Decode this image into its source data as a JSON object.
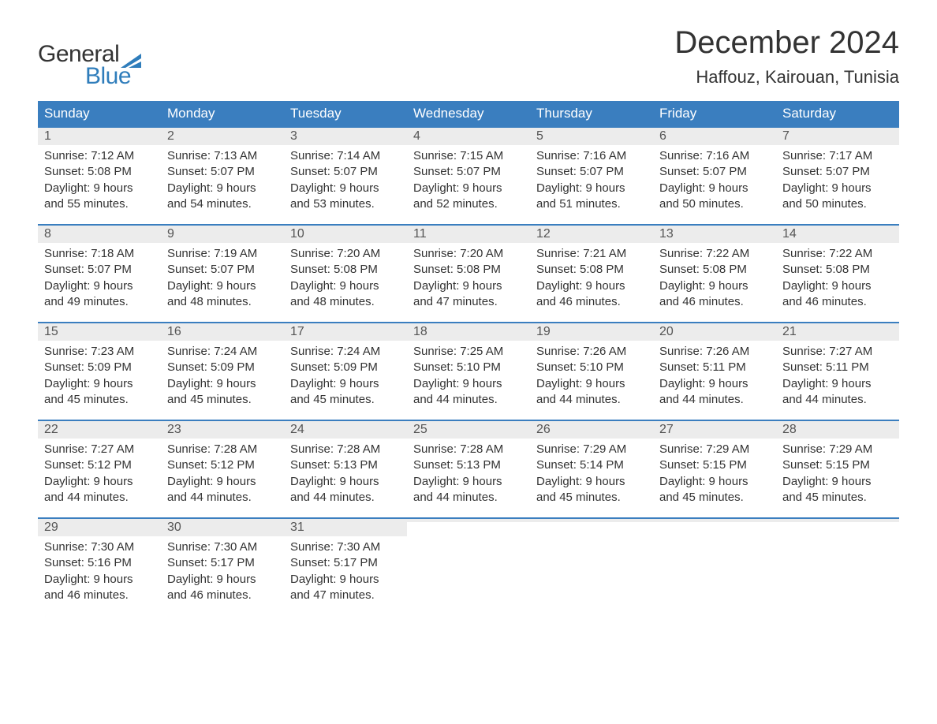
{
  "logo": {
    "text1": "General",
    "text2": "Blue",
    "flag_color": "#2f7dbb"
  },
  "title": "December 2024",
  "subtitle": "Haffouz, Kairouan, Tunisia",
  "colors": {
    "header_bg": "#3a7ebf",
    "header_text": "#ffffff",
    "daynum_bg": "#ececec",
    "border": "#3a7ebf",
    "body_text": "#333333",
    "logo_blue": "#2f7dbb"
  },
  "typography": {
    "title_fontsize": 40,
    "subtitle_fontsize": 22,
    "dow_fontsize": 17,
    "body_fontsize": 15,
    "logo_fontsize": 30
  },
  "dow": [
    "Sunday",
    "Monday",
    "Tuesday",
    "Wednesday",
    "Thursday",
    "Friday",
    "Saturday"
  ],
  "weeks": [
    [
      {
        "n": "1",
        "sunrise": "Sunrise: 7:12 AM",
        "sunset": "Sunset: 5:08 PM",
        "d1": "Daylight: 9 hours",
        "d2": "and 55 minutes."
      },
      {
        "n": "2",
        "sunrise": "Sunrise: 7:13 AM",
        "sunset": "Sunset: 5:07 PM",
        "d1": "Daylight: 9 hours",
        "d2": "and 54 minutes."
      },
      {
        "n": "3",
        "sunrise": "Sunrise: 7:14 AM",
        "sunset": "Sunset: 5:07 PM",
        "d1": "Daylight: 9 hours",
        "d2": "and 53 minutes."
      },
      {
        "n": "4",
        "sunrise": "Sunrise: 7:15 AM",
        "sunset": "Sunset: 5:07 PM",
        "d1": "Daylight: 9 hours",
        "d2": "and 52 minutes."
      },
      {
        "n": "5",
        "sunrise": "Sunrise: 7:16 AM",
        "sunset": "Sunset: 5:07 PM",
        "d1": "Daylight: 9 hours",
        "d2": "and 51 minutes."
      },
      {
        "n": "6",
        "sunrise": "Sunrise: 7:16 AM",
        "sunset": "Sunset: 5:07 PM",
        "d1": "Daylight: 9 hours",
        "d2": "and 50 minutes."
      },
      {
        "n": "7",
        "sunrise": "Sunrise: 7:17 AM",
        "sunset": "Sunset: 5:07 PM",
        "d1": "Daylight: 9 hours",
        "d2": "and 50 minutes."
      }
    ],
    [
      {
        "n": "8",
        "sunrise": "Sunrise: 7:18 AM",
        "sunset": "Sunset: 5:07 PM",
        "d1": "Daylight: 9 hours",
        "d2": "and 49 minutes."
      },
      {
        "n": "9",
        "sunrise": "Sunrise: 7:19 AM",
        "sunset": "Sunset: 5:07 PM",
        "d1": "Daylight: 9 hours",
        "d2": "and 48 minutes."
      },
      {
        "n": "10",
        "sunrise": "Sunrise: 7:20 AM",
        "sunset": "Sunset: 5:08 PM",
        "d1": "Daylight: 9 hours",
        "d2": "and 48 minutes."
      },
      {
        "n": "11",
        "sunrise": "Sunrise: 7:20 AM",
        "sunset": "Sunset: 5:08 PM",
        "d1": "Daylight: 9 hours",
        "d2": "and 47 minutes."
      },
      {
        "n": "12",
        "sunrise": "Sunrise: 7:21 AM",
        "sunset": "Sunset: 5:08 PM",
        "d1": "Daylight: 9 hours",
        "d2": "and 46 minutes."
      },
      {
        "n": "13",
        "sunrise": "Sunrise: 7:22 AM",
        "sunset": "Sunset: 5:08 PM",
        "d1": "Daylight: 9 hours",
        "d2": "and 46 minutes."
      },
      {
        "n": "14",
        "sunrise": "Sunrise: 7:22 AM",
        "sunset": "Sunset: 5:08 PM",
        "d1": "Daylight: 9 hours",
        "d2": "and 46 minutes."
      }
    ],
    [
      {
        "n": "15",
        "sunrise": "Sunrise: 7:23 AM",
        "sunset": "Sunset: 5:09 PM",
        "d1": "Daylight: 9 hours",
        "d2": "and 45 minutes."
      },
      {
        "n": "16",
        "sunrise": "Sunrise: 7:24 AM",
        "sunset": "Sunset: 5:09 PM",
        "d1": "Daylight: 9 hours",
        "d2": "and 45 minutes."
      },
      {
        "n": "17",
        "sunrise": "Sunrise: 7:24 AM",
        "sunset": "Sunset: 5:09 PM",
        "d1": "Daylight: 9 hours",
        "d2": "and 45 minutes."
      },
      {
        "n": "18",
        "sunrise": "Sunrise: 7:25 AM",
        "sunset": "Sunset: 5:10 PM",
        "d1": "Daylight: 9 hours",
        "d2": "and 44 minutes."
      },
      {
        "n": "19",
        "sunrise": "Sunrise: 7:26 AM",
        "sunset": "Sunset: 5:10 PM",
        "d1": "Daylight: 9 hours",
        "d2": "and 44 minutes."
      },
      {
        "n": "20",
        "sunrise": "Sunrise: 7:26 AM",
        "sunset": "Sunset: 5:11 PM",
        "d1": "Daylight: 9 hours",
        "d2": "and 44 minutes."
      },
      {
        "n": "21",
        "sunrise": "Sunrise: 7:27 AM",
        "sunset": "Sunset: 5:11 PM",
        "d1": "Daylight: 9 hours",
        "d2": "and 44 minutes."
      }
    ],
    [
      {
        "n": "22",
        "sunrise": "Sunrise: 7:27 AM",
        "sunset": "Sunset: 5:12 PM",
        "d1": "Daylight: 9 hours",
        "d2": "and 44 minutes."
      },
      {
        "n": "23",
        "sunrise": "Sunrise: 7:28 AM",
        "sunset": "Sunset: 5:12 PM",
        "d1": "Daylight: 9 hours",
        "d2": "and 44 minutes."
      },
      {
        "n": "24",
        "sunrise": "Sunrise: 7:28 AM",
        "sunset": "Sunset: 5:13 PM",
        "d1": "Daylight: 9 hours",
        "d2": "and 44 minutes."
      },
      {
        "n": "25",
        "sunrise": "Sunrise: 7:28 AM",
        "sunset": "Sunset: 5:13 PM",
        "d1": "Daylight: 9 hours",
        "d2": "and 44 minutes."
      },
      {
        "n": "26",
        "sunrise": "Sunrise: 7:29 AM",
        "sunset": "Sunset: 5:14 PM",
        "d1": "Daylight: 9 hours",
        "d2": "and 45 minutes."
      },
      {
        "n": "27",
        "sunrise": "Sunrise: 7:29 AM",
        "sunset": "Sunset: 5:15 PM",
        "d1": "Daylight: 9 hours",
        "d2": "and 45 minutes."
      },
      {
        "n": "28",
        "sunrise": "Sunrise: 7:29 AM",
        "sunset": "Sunset: 5:15 PM",
        "d1": "Daylight: 9 hours",
        "d2": "and 45 minutes."
      }
    ],
    [
      {
        "n": "29",
        "sunrise": "Sunrise: 7:30 AM",
        "sunset": "Sunset: 5:16 PM",
        "d1": "Daylight: 9 hours",
        "d2": "and 46 minutes."
      },
      {
        "n": "30",
        "sunrise": "Sunrise: 7:30 AM",
        "sunset": "Sunset: 5:17 PM",
        "d1": "Daylight: 9 hours",
        "d2": "and 46 minutes."
      },
      {
        "n": "31",
        "sunrise": "Sunrise: 7:30 AM",
        "sunset": "Sunset: 5:17 PM",
        "d1": "Daylight: 9 hours",
        "d2": "and 47 minutes."
      },
      {
        "n": "",
        "sunrise": "",
        "sunset": "",
        "d1": "",
        "d2": ""
      },
      {
        "n": "",
        "sunrise": "",
        "sunset": "",
        "d1": "",
        "d2": ""
      },
      {
        "n": "",
        "sunrise": "",
        "sunset": "",
        "d1": "",
        "d2": ""
      },
      {
        "n": "",
        "sunrise": "",
        "sunset": "",
        "d1": "",
        "d2": ""
      }
    ]
  ]
}
